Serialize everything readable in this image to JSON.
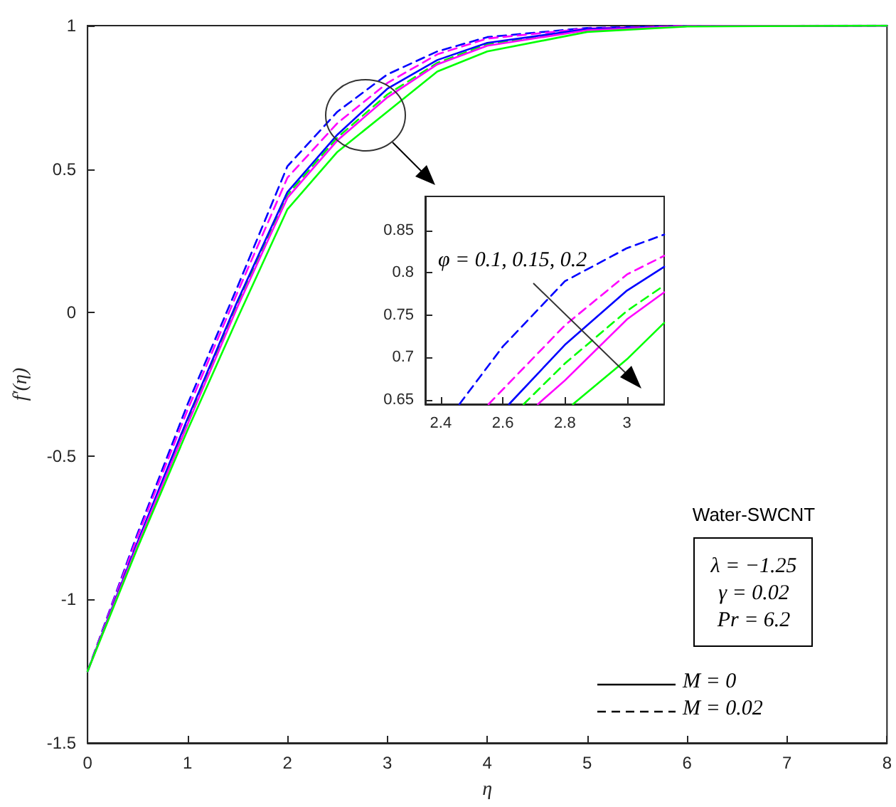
{
  "chart_data": [
    {
      "type": "line",
      "xlabel": "η",
      "ylabel": "f′(η)",
      "x": [
        0,
        0.5,
        1,
        1.5,
        2,
        2.5,
        3,
        3.5,
        4,
        5,
        6,
        8
      ],
      "series": [
        {
          "color": "#0000ff",
          "line_style": "dashed",
          "values": [
            -1.25,
            -0.77,
            -0.32,
            0.09,
            0.51,
            0.7,
            0.83,
            0.91,
            0.96,
            0.992,
            0.999,
            1
          ]
        },
        {
          "color": "#ff00ff",
          "line_style": "dashed",
          "values": [
            -1.25,
            -0.78,
            -0.34,
            0.07,
            0.47,
            0.66,
            0.8,
            0.9,
            0.955,
            0.99,
            0.999,
            1
          ]
        },
        {
          "color": "#00ff00",
          "line_style": "dashed",
          "values": [
            -1.25,
            -0.8,
            -0.38,
            0.03,
            0.41,
            0.61,
            0.76,
            0.87,
            0.935,
            0.985,
            0.998,
            1
          ]
        },
        {
          "color": "#0000ff",
          "line_style": "solid",
          "values": [
            -1.25,
            -0.8,
            -0.37,
            0.04,
            0.42,
            0.62,
            0.78,
            0.88,
            0.94,
            0.988,
            0.998,
            1
          ]
        },
        {
          "color": "#ff00ff",
          "line_style": "solid",
          "values": [
            -1.25,
            -0.81,
            -0.39,
            0.02,
            0.4,
            0.6,
            0.75,
            0.865,
            0.93,
            0.984,
            0.998,
            1
          ]
        },
        {
          "color": "#00ff00",
          "line_style": "solid",
          "values": [
            -1.25,
            -0.82,
            -0.41,
            -0.02,
            0.36,
            0.56,
            0.7,
            0.84,
            0.91,
            0.978,
            0.997,
            1
          ]
        }
      ],
      "xlim": [
        0,
        8
      ],
      "xticks": [
        0,
        1,
        2,
        3,
        4,
        5,
        6,
        7,
        8
      ],
      "ylim": [
        -1.5,
        1
      ],
      "yticks": [
        -1.5,
        -1,
        -0.5,
        0,
        0.5,
        1
      ],
      "grid": false,
      "marker": "none",
      "annotations": [
        "Water-SWCNT",
        "λ = −1.25",
        "γ = 0.02",
        "Pr = 6.2",
        "M = 0",
        "M = 0.02"
      ]
    },
    {
      "type": "line",
      "series": [
        {
          "color": "#0000ff",
          "line_style": "dashed",
          "x": [
            2.46,
            2.6,
            2.8,
            3.0,
            3.12
          ],
          "values": [
            0.645,
            0.713,
            0.79,
            0.829,
            0.845
          ]
        },
        {
          "color": "#ff00ff",
          "line_style": "dashed",
          "x": [
            2.554,
            2.8,
            3.0,
            3.12
          ],
          "values": [
            0.645,
            0.738,
            0.798,
            0.82
          ]
        },
        {
          "color": "#00ff00",
          "line_style": "dashed",
          "x": [
            2.667,
            2.8,
            3.0,
            3.12
          ],
          "values": [
            0.645,
            0.693,
            0.755,
            0.785
          ]
        },
        {
          "color": "#0000ff",
          "line_style": "solid",
          "x": [
            2.62,
            2.8,
            3.0,
            3.12
          ],
          "values": [
            0.645,
            0.715,
            0.779,
            0.807
          ]
        },
        {
          "color": "#ff00ff",
          "line_style": "solid",
          "x": [
            2.713,
            2.8,
            3.0,
            3.12
          ],
          "values": [
            0.645,
            0.673,
            0.745,
            0.777
          ]
        },
        {
          "color": "#00ff00",
          "line_style": "solid",
          "x": [
            2.826,
            3.0,
            3.12
          ],
          "values": [
            0.645,
            0.698,
            0.741
          ]
        }
      ],
      "xlim": [
        2.35,
        3.12
      ],
      "xticks": [
        2.4,
        2.6,
        2.8,
        {
          "value": 3,
          "label": "3"
        }
      ],
      "ylim": [
        0.645,
        0.89
      ],
      "yticks": [
        0.65,
        0.7,
        0.75,
        0.8,
        0.85
      ],
      "grid": false,
      "marker": "none",
      "annotations": [
        "φ = 0.1, 0.15, 0.2"
      ]
    }
  ]
}
